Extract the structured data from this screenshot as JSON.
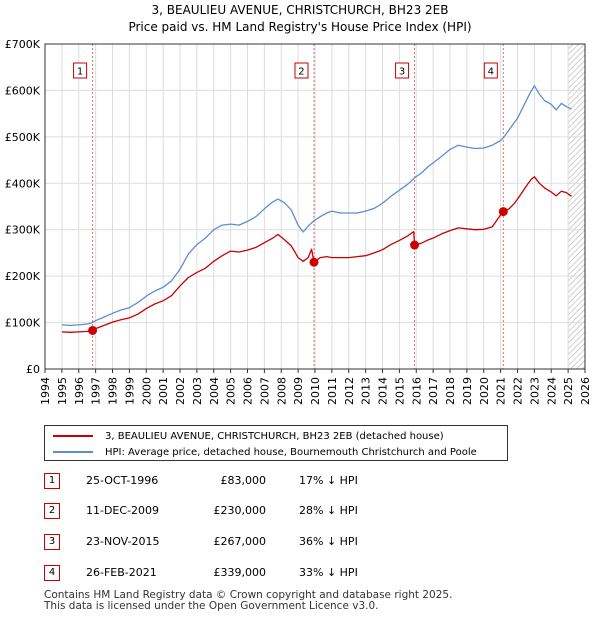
{
  "title_line1": "3, BEAULIEU AVENUE, CHRISTCHURCH, BH23 2EB",
  "title_line2": "Price paid vs. HM Land Registry's House Price Index (HPI)",
  "chart_data": {
    "type": "line",
    "title": "Price paid vs. HM Land Registry's House Price Index (HPI)",
    "xlabel": "",
    "ylabel": "",
    "xlim": [
      1994,
      2026
    ],
    "ylim": [
      0,
      700000
    ],
    "x_ticks": [
      1994,
      1995,
      1996,
      1997,
      1998,
      1999,
      2000,
      2001,
      2002,
      2003,
      2004,
      2005,
      2006,
      2007,
      2008,
      2009,
      2010,
      2011,
      2012,
      2013,
      2014,
      2015,
      2016,
      2017,
      2018,
      2019,
      2020,
      2021,
      2022,
      2023,
      2024,
      2025,
      2026
    ],
    "y_ticks": [
      {
        "value": 0,
        "label": "£0"
      },
      {
        "value": 100000,
        "label": "£100K"
      },
      {
        "value": 200000,
        "label": "£200K"
      },
      {
        "value": 300000,
        "label": "£300K"
      },
      {
        "value": 400000,
        "label": "£400K"
      },
      {
        "value": 500000,
        "label": "£500K"
      },
      {
        "value": 600000,
        "label": "£600K"
      },
      {
        "value": 700000,
        "label": "£700K"
      }
    ],
    "grid": true,
    "forecast_from": 2025.0,
    "series": [
      {
        "name": "HPI: Average price, detached house, Bournemouth Christchurch and Poole",
        "color": "#5b8fd0",
        "x": [
          1995.0,
          1995.5,
          1996.0,
          1996.5,
          1996.8,
          1997.0,
          1997.5,
          1998.0,
          1998.5,
          1999.0,
          1999.5,
          2000.0,
          2000.5,
          2001.0,
          2001.5,
          2002.0,
          2002.5,
          2003.0,
          2003.5,
          2004.0,
          2004.5,
          2005.0,
          2005.5,
          2006.0,
          2006.5,
          2007.0,
          2007.5,
          2007.8,
          2008.2,
          2008.6,
          2009.0,
          2009.3,
          2009.6,
          2009.9,
          2010.3,
          2010.7,
          2011.0,
          2011.5,
          2012.0,
          2012.5,
          2013.0,
          2013.5,
          2014.0,
          2014.5,
          2015.0,
          2015.5,
          2015.9,
          2016.3,
          2016.7,
          2017.0,
          2017.5,
          2018.0,
          2018.5,
          2019.0,
          2019.5,
          2020.0,
          2020.5,
          2021.0,
          2021.2,
          2021.5,
          2021.8,
          2022.0,
          2022.3,
          2022.6,
          2022.8,
          2023.0,
          2023.3,
          2023.6,
          2024.0,
          2024.3,
          2024.6,
          2024.9,
          2025.2
        ],
        "y": [
          95000,
          94000,
          95000,
          97000,
          100000,
          104000,
          112000,
          120000,
          127000,
          132000,
          143000,
          157000,
          168000,
          176000,
          190000,
          215000,
          248000,
          268000,
          282000,
          300000,
          310000,
          312000,
          310000,
          318000,
          328000,
          345000,
          360000,
          366000,
          358000,
          342000,
          310000,
          295000,
          308000,
          318000,
          328000,
          336000,
          340000,
          336000,
          336000,
          336000,
          340000,
          346000,
          357000,
          372000,
          385000,
          398000,
          412000,
          422000,
          436000,
          444000,
          458000,
          473000,
          482000,
          478000,
          475000,
          476000,
          482000,
          492000,
          500000,
          515000,
          530000,
          540000,
          562000,
          584000,
          598000,
          610000,
          592000,
          578000,
          570000,
          558000,
          572000,
          565000,
          560000
        ]
      },
      {
        "name": "3, BEAULIEU AVENUE, CHRISTCHURCH, BH23 2EB (detached house)",
        "color": "#cc0000",
        "x": [
          1995.0,
          1995.5,
          1996.0,
          1996.5,
          1996.82,
          1997.0,
          1997.5,
          1998.0,
          1998.5,
          1999.0,
          1999.5,
          2000.0,
          2000.5,
          2001.0,
          2001.5,
          2002.0,
          2002.5,
          2003.0,
          2003.5,
          2004.0,
          2004.5,
          2005.0,
          2005.5,
          2006.0,
          2006.5,
          2007.0,
          2007.5,
          2007.8,
          2008.2,
          2008.6,
          2009.0,
          2009.3,
          2009.6,
          2009.8,
          2009.94,
          2010.3,
          2010.7,
          2011.0,
          2011.5,
          2012.0,
          2012.5,
          2013.0,
          2013.5,
          2014.0,
          2014.5,
          2015.0,
          2015.5,
          2015.85,
          2015.9,
          2016.3,
          2016.7,
          2017.0,
          2017.5,
          2018.0,
          2018.5,
          2019.0,
          2019.5,
          2020.0,
          2020.5,
          2021.0,
          2021.16,
          2021.5,
          2021.8,
          2022.0,
          2022.3,
          2022.6,
          2022.8,
          2023.0,
          2023.3,
          2023.6,
          2024.0,
          2024.3,
          2024.6,
          2024.9,
          2025.2
        ],
        "y": [
          80000,
          79000,
          80000,
          81000,
          83000,
          87000,
          94000,
          101000,
          106000,
          110000,
          118000,
          130000,
          140000,
          147000,
          158000,
          179000,
          197000,
          208000,
          217000,
          232000,
          244000,
          254000,
          252000,
          256000,
          262000,
          272000,
          282000,
          290000,
          278000,
          265000,
          240000,
          232000,
          240000,
          258000,
          230000,
          240000,
          242000,
          240000,
          240000,
          240000,
          242000,
          244000,
          250000,
          257000,
          268000,
          277000,
          287000,
          296000,
          267000,
          271000,
          278000,
          282000,
          291000,
          298000,
          304000,
          302000,
          300000,
          301000,
          306000,
          332000,
          339000,
          345000,
          356000,
          366000,
          382000,
          398000,
          408000,
          414000,
          400000,
          390000,
          381000,
          373000,
          383000,
          380000,
          372000
        ]
      }
    ],
    "sales": [
      {
        "num": "1",
        "x": 1996.82,
        "price": 83000
      },
      {
        "num": "2",
        "x": 2009.94,
        "price": 230000
      },
      {
        "num": "3",
        "x": 2015.9,
        "price": 267000
      },
      {
        "num": "4",
        "x": 2021.16,
        "price": 339000
      }
    ]
  },
  "legend": {
    "property_label": "3, BEAULIEU AVENUE, CHRISTCHURCH, BH23 2EB (detached house)",
    "hpi_label": "HPI: Average price, detached house, Bournemouth Christchurch and Poole",
    "property_color": "#cc0000",
    "hpi_color": "#5b8fd0"
  },
  "sales_table": [
    {
      "num": "1",
      "date": "25-OCT-1996",
      "price": "£83,000",
      "hpi": "17% ↓ HPI"
    },
    {
      "num": "2",
      "date": "11-DEC-2009",
      "price": "£230,000",
      "hpi": "28% ↓ HPI"
    },
    {
      "num": "3",
      "date": "23-NOV-2015",
      "price": "£267,000",
      "hpi": "36% ↓ HPI"
    },
    {
      "num": "4",
      "date": "26-FEB-2021",
      "price": "£339,000",
      "hpi": "33% ↓ HPI"
    }
  ],
  "footer": {
    "line1": "Contains HM Land Registry data © Crown copyright and database right 2025.",
    "line2": "This data is licensed under the Open Government Licence v3.0."
  }
}
